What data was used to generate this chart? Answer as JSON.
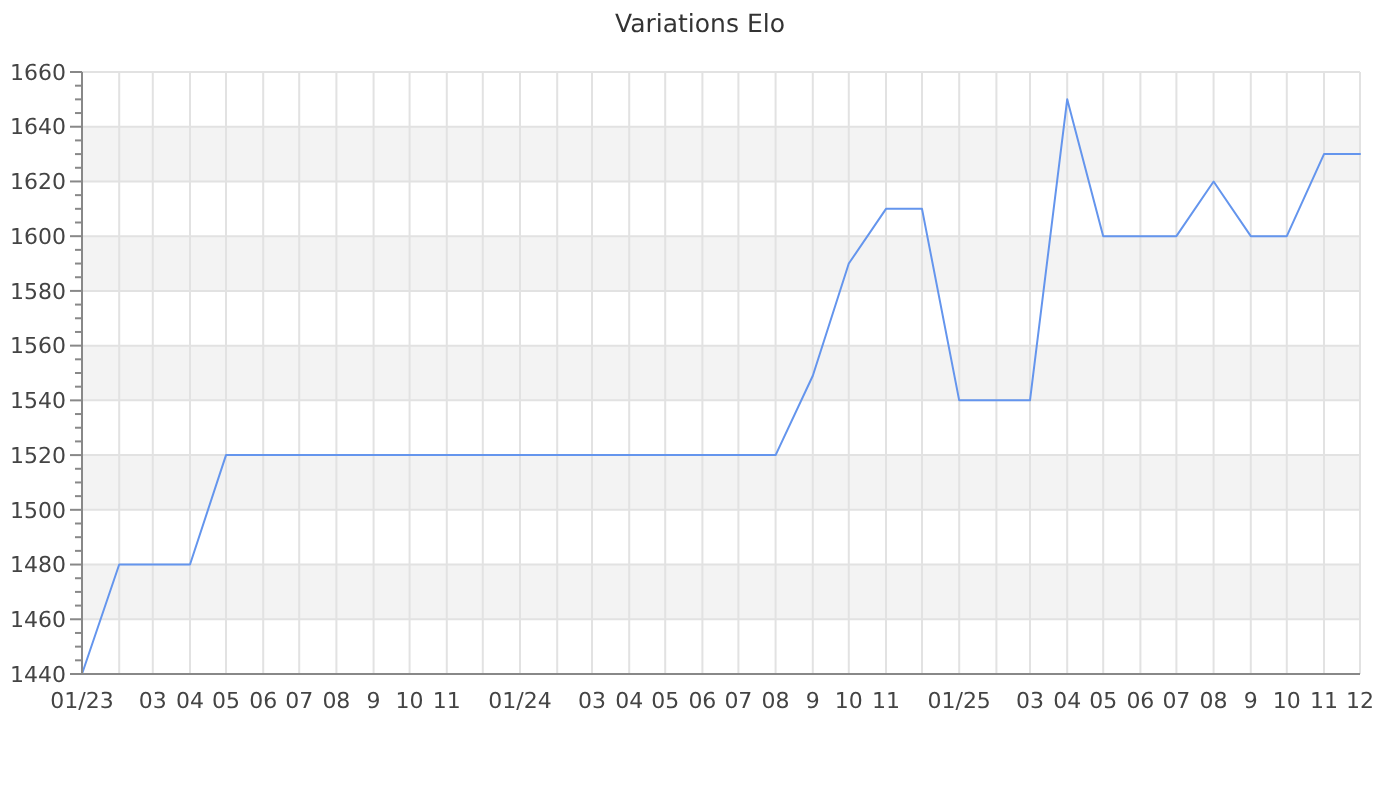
{
  "chart_data": {
    "type": "line",
    "title": "Variations Elo",
    "x": [
      "2023-01",
      "2023-02",
      "2023-03",
      "2023-04",
      "2023-05",
      "2023-06",
      "2023-07",
      "2023-08",
      "2023-09",
      "2023-10",
      "2023-11",
      "2023-12",
      "2024-01",
      "2024-02",
      "2024-03",
      "2024-04",
      "2024-05",
      "2024-06",
      "2024-07",
      "2024-08",
      "2024-09",
      "2024-10",
      "2024-11",
      "2024-12",
      "2025-01",
      "2025-02",
      "2025-03",
      "2025-04",
      "2025-05",
      "2025-06",
      "2025-07",
      "2025-08",
      "2025-09",
      "2025-10",
      "2025-11",
      "2025-12"
    ],
    "values": [
      1440,
      1480,
      1480,
      1480,
      1520,
      1520,
      1520,
      1520,
      1520,
      1520,
      1520,
      1520,
      1520,
      1520,
      1520,
      1520,
      1520,
      1520,
      1520,
      1520,
      1549,
      1590,
      1610,
      1610,
      1540,
      1540,
      1540,
      1650,
      1600,
      1600,
      1600,
      1620,
      1600,
      1600,
      1630,
      1630
    ],
    "color": "#6495ed",
    "line_style": "solid",
    "xlim": [
      "2023-01",
      "2025-12"
    ],
    "xticks": [
      {
        "value": "2023-01",
        "label": "01/23"
      },
      {
        "value": "2023-02",
        "label": null
      },
      {
        "value": "2023-03",
        "label": "03"
      },
      {
        "value": "2023-04",
        "label": "04"
      },
      {
        "value": "2023-05",
        "label": "05"
      },
      {
        "value": "2023-06",
        "label": "06"
      },
      {
        "value": "2023-07",
        "label": "07"
      },
      {
        "value": "2023-08",
        "label": "08"
      },
      {
        "value": "2023-09",
        "label": "9"
      },
      {
        "value": "2023-10",
        "label": "10"
      },
      {
        "value": "2023-11",
        "label": "11"
      },
      {
        "value": "2023-12",
        "label": null
      },
      {
        "value": "2024-01",
        "label": "01/24"
      },
      {
        "value": "2024-02",
        "label": null
      },
      {
        "value": "2024-03",
        "label": "03"
      },
      {
        "value": "2024-04",
        "label": "04"
      },
      {
        "value": "2024-05",
        "label": "05"
      },
      {
        "value": "2024-06",
        "label": "06"
      },
      {
        "value": "2024-07",
        "label": "07"
      },
      {
        "value": "2024-08",
        "label": "08"
      },
      {
        "value": "2024-09",
        "label": "9"
      },
      {
        "value": "2024-10",
        "label": "10"
      },
      {
        "value": "2024-11",
        "label": "11"
      },
      {
        "value": "2024-12",
        "label": null
      },
      {
        "value": "2025-01",
        "label": "01/25"
      },
      {
        "value": "2025-02",
        "label": null
      },
      {
        "value": "2025-03",
        "label": "03"
      },
      {
        "value": "2025-04",
        "label": "04"
      },
      {
        "value": "2025-05",
        "label": "05"
      },
      {
        "value": "2025-06",
        "label": "06"
      },
      {
        "value": "2025-07",
        "label": "07"
      },
      {
        "value": "2025-08",
        "label": "08"
      },
      {
        "value": "2025-09",
        "label": "9"
      },
      {
        "value": "2025-10",
        "label": "10"
      },
      {
        "value": "2025-11",
        "label": "11"
      },
      {
        "value": "2025-12",
        "label": "12"
      }
    ],
    "ylim": [
      1440,
      1660
    ],
    "yticks": [
      1440,
      {
        "value": 1445,
        "label": null
      },
      {
        "value": 1450,
        "label": null
      },
      {
        "value": 1455,
        "label": null
      },
      1460,
      {
        "value": 1465,
        "label": null
      },
      {
        "value": 1470,
        "label": null
      },
      {
        "value": 1475,
        "label": null
      },
      1480,
      {
        "value": 1485,
        "label": null
      },
      {
        "value": 1490,
        "label": null
      },
      {
        "value": 1495,
        "label": null
      },
      1500,
      {
        "value": 1505,
        "label": null
      },
      {
        "value": 1510,
        "label": null
      },
      {
        "value": 1515,
        "label": null
      },
      1520,
      {
        "value": 1525,
        "label": null
      },
      {
        "value": 1530,
        "label": null
      },
      {
        "value": 1535,
        "label": null
      },
      1540,
      {
        "value": 1545,
        "label": null
      },
      {
        "value": 1550,
        "label": null
      },
      {
        "value": 1555,
        "label": null
      },
      1560,
      {
        "value": 1565,
        "label": null
      },
      {
        "value": 1570,
        "label": null
      },
      {
        "value": 1575,
        "label": null
      },
      1580,
      {
        "value": 1585,
        "label": null
      },
      {
        "value": 1590,
        "label": null
      },
      {
        "value": 1595,
        "label": null
      },
      1600,
      {
        "value": 1605,
        "label": null
      },
      {
        "value": 1610,
        "label": null
      },
      {
        "value": 1615,
        "label": null
      },
      1620,
      {
        "value": 1625,
        "label": null
      },
      {
        "value": 1630,
        "label": null
      },
      {
        "value": 1635,
        "label": null
      },
      1640,
      {
        "value": 1645,
        "label": null
      },
      {
        "value": 1650,
        "label": null
      },
      {
        "value": 1655,
        "label": null
      },
      1660
    ],
    "grid": true
  }
}
